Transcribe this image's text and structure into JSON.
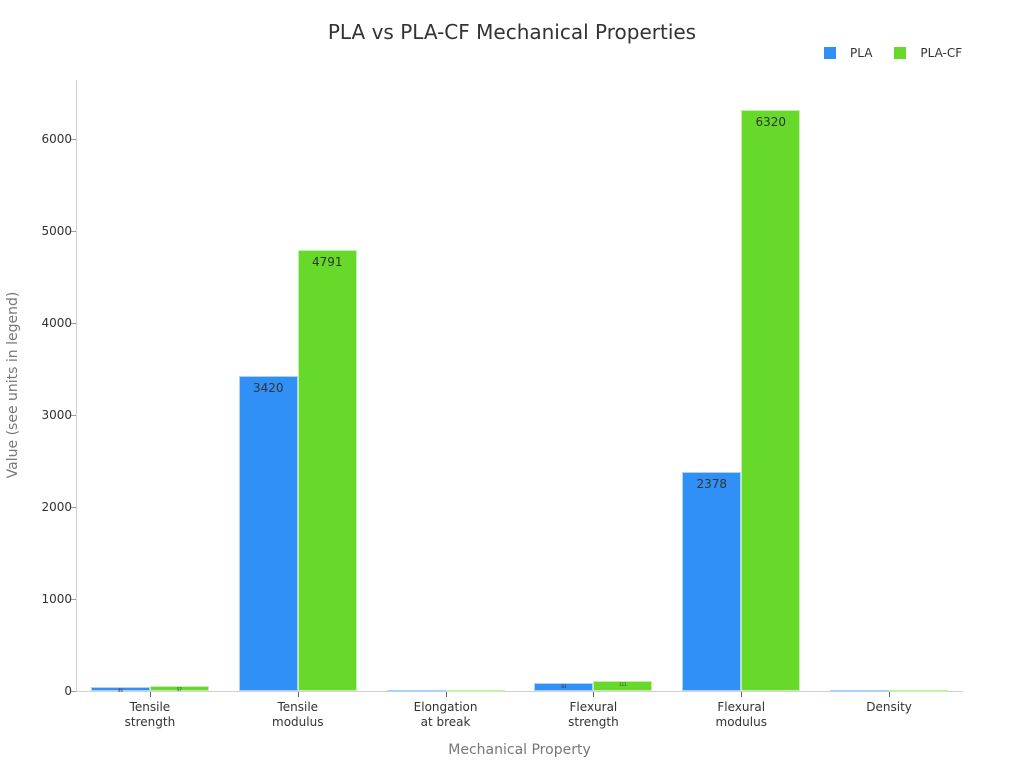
{
  "chart_data": {
    "type": "bar",
    "title": "PLA vs PLA-CF Mechanical Properties",
    "xlabel": "Mechanical Property",
    "ylabel": "Value (see units in legend)",
    "categories": [
      "Tensile\nstrength",
      "Tensile\nmodulus",
      "Elongation\nat break",
      "Flexural\nstrength",
      "Flexural\nmodulus",
      "Density"
    ],
    "series": [
      {
        "name": "PLA",
        "color": "#3090f5",
        "values": [
          46,
          3420,
          6,
          83,
          2378,
          1.24
        ]
      },
      {
        "name": "PLA-CF",
        "color": "#66d92a",
        "values": [
          57,
          4791,
          3,
          111,
          6320,
          1.3
        ]
      }
    ],
    "ylim": [
      0,
      6650
    ],
    "yticks": [
      0,
      1000,
      2000,
      3000,
      4000,
      5000,
      6000
    ],
    "grid": false,
    "legend_position": "top-right"
  },
  "title": "PLA vs PLA-CF Mechanical Properties",
  "legend": [
    {
      "label": "PLA",
      "color": "#3090f5"
    },
    {
      "label": "PLA-CF",
      "color": "#66d92a"
    }
  ]
}
